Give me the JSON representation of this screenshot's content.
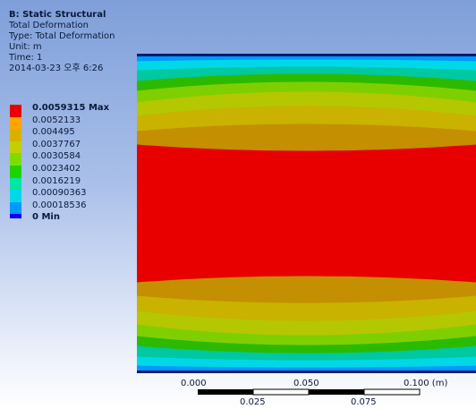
{
  "header": {
    "title": "B: Static Structural",
    "result_name": "Total Deformation",
    "type_line": "Type: Total Deformation",
    "unit_line": "Unit: m",
    "time_line": "Time: 1",
    "date_line": "2014-03-23 오후 6:26"
  },
  "legend": [
    {
      "label": "0.0059315 Max",
      "color": "#e80000",
      "bold": true
    },
    {
      "label": "0.0052133",
      "color": "#ffa500",
      "bold": false
    },
    {
      "label": "0.004495",
      "color": "#d8b100",
      "bold": false
    },
    {
      "label": "0.0037767",
      "color": "#c4cf00",
      "bold": false
    },
    {
      "label": "0.0030584",
      "color": "#7fdc00",
      "bold": false
    },
    {
      "label": "0.0023402",
      "color": "#1fd300",
      "bold": false
    },
    {
      "label": "0.0016219",
      "color": "#00e6a6",
      "bold": false
    },
    {
      "label": "0.00090363",
      "color": "#00d8e8",
      "bold": false
    },
    {
      "label": "0.00018536",
      "color": "#0099ff",
      "bold": false
    },
    {
      "label": "0 Min",
      "color": "#0000ee",
      "bold": true
    }
  ],
  "contour_colors": [
    "#0000d0",
    "#0099ff",
    "#00d8e8",
    "#00c8a0",
    "#2cba00",
    "#7fcf00",
    "#b5c700",
    "#c9b200",
    "#c48f00",
    "#e80000"
  ],
  "scale": {
    "upper_ticks": [
      "0.000",
      "0.050",
      "0.100 (m)"
    ],
    "lower_ticks": [
      "0.025",
      "0.075"
    ]
  }
}
